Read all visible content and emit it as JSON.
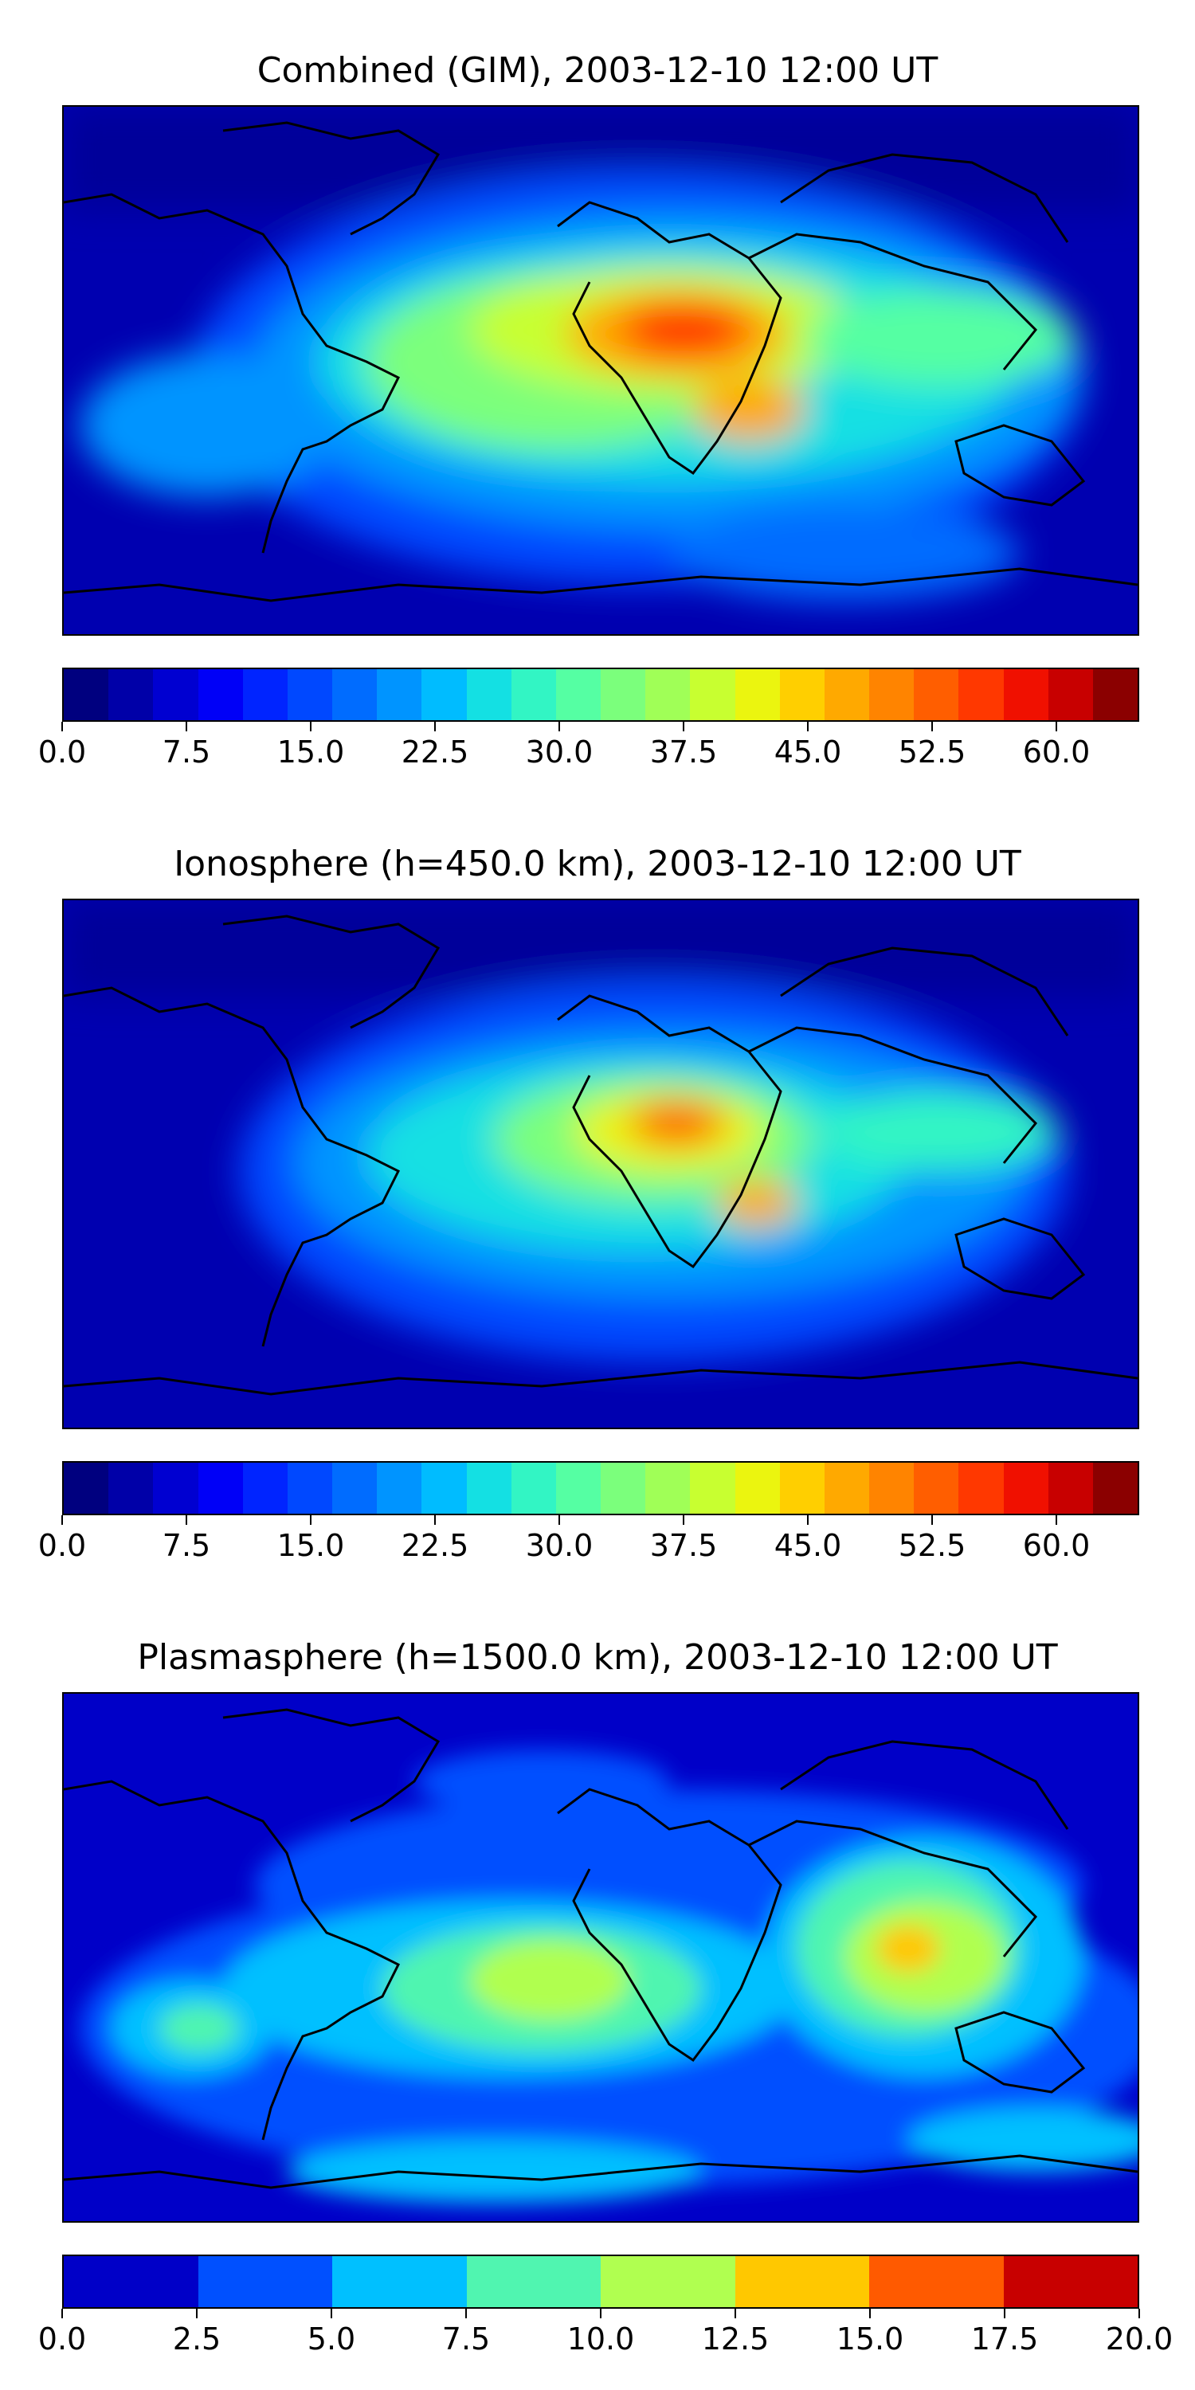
{
  "panels": [
    {
      "title": "Combined (GIM), 2003-12-10 12:00 UT",
      "variable": "combined",
      "colorbar": {
        "min": 0,
        "max": 65,
        "step": 2.5,
        "colors": [
          "#00007f",
          "#0000a8",
          "#0000d1",
          "#0000f7",
          "#0024ff",
          "#0048ff",
          "#006cff",
          "#0094ff",
          "#00bcff",
          "#14e0e3",
          "#32f5c4",
          "#55ffa3",
          "#7bff7c",
          "#a0ff57",
          "#c8ff30",
          "#ebf50f",
          "#ffcf00",
          "#ffa900",
          "#ff8400",
          "#ff5e00",
          "#ff3800",
          "#f01000",
          "#c80000",
          "#8b0000"
        ],
        "tick_labels": [
          "0.0",
          "7.5",
          "15.0",
          "22.5",
          "30.0",
          "37.5",
          "45.0",
          "52.5",
          "60.0"
        ],
        "tick_values": [
          0,
          7.5,
          15,
          22.5,
          30,
          37.5,
          45,
          52.5,
          60
        ]
      }
    },
    {
      "title": "Ionosphere  (h=450.0 km), 2003-12-10 12:00 UT",
      "variable": "ionosphere",
      "colorbar": {
        "min": 0,
        "max": 65,
        "step": 2.5,
        "colors": [
          "#00007f",
          "#0000a8",
          "#0000d1",
          "#0000f7",
          "#0024ff",
          "#0048ff",
          "#006cff",
          "#0094ff",
          "#00bcff",
          "#14e0e3",
          "#32f5c4",
          "#55ffa3",
          "#7bff7c",
          "#a0ff57",
          "#c8ff30",
          "#ebf50f",
          "#ffcf00",
          "#ffa900",
          "#ff8400",
          "#ff5e00",
          "#ff3800",
          "#f01000",
          "#c80000",
          "#8b0000"
        ],
        "tick_labels": [
          "0.0",
          "7.5",
          "15.0",
          "22.5",
          "30.0",
          "37.5",
          "45.0",
          "52.5",
          "60.0"
        ],
        "tick_values": [
          0,
          7.5,
          15,
          22.5,
          30,
          37.5,
          45,
          52.5,
          60
        ]
      }
    },
    {
      "title": "Plasmasphere (h=1500.0 km), 2003-12-10 12:00 UT",
      "variable": "plasmasphere",
      "colorbar": {
        "min": 0,
        "max": 20,
        "step": 2.5,
        "colors": [
          "#0000c8",
          "#0050ff",
          "#00c0ff",
          "#50f5b0",
          "#b0ff50",
          "#ffc800",
          "#ff5a00",
          "#c80000"
        ],
        "tick_labels": [
          "0.0",
          "2.5",
          "5.0",
          "7.5",
          "10.0",
          "12.5",
          "15.0",
          "17.5",
          "20.0"
        ],
        "tick_values": [
          0,
          2.5,
          5,
          7.5,
          10,
          12.5,
          15,
          17.5,
          20
        ]
      }
    }
  ]
}
